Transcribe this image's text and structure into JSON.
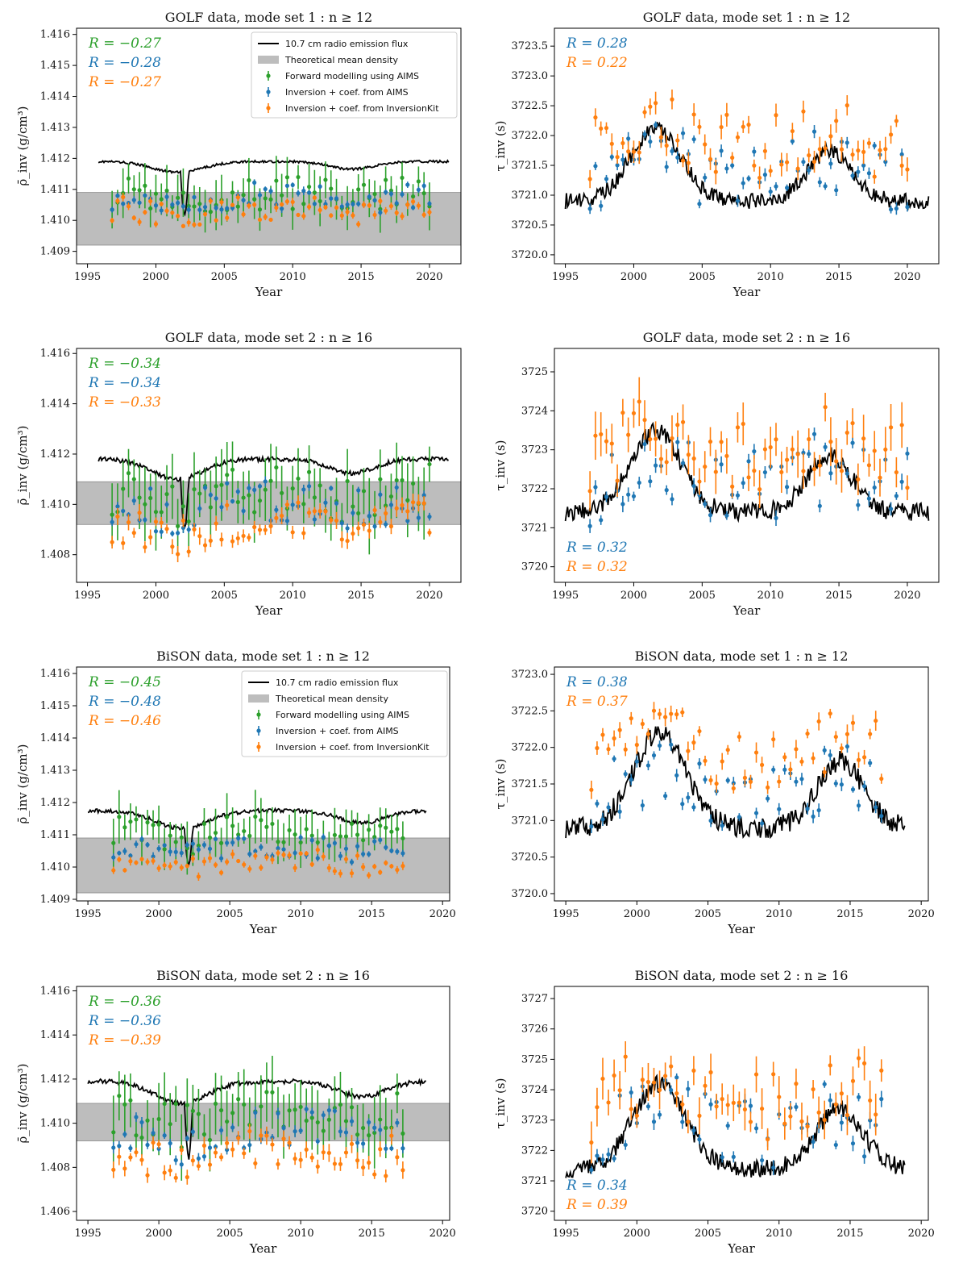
{
  "colors": {
    "forward": "#2ca02c",
    "inv_aims": "#1f77b4",
    "inv_kit": "#ff7f0e",
    "flux": "#000000",
    "band": "#bdbdbd"
  },
  "legend": {
    "flux": "10.7 cm radio emission flux",
    "band": "Theoretical mean density",
    "forward": "Forward modelling using AIMS",
    "inv_aims": "Inversion + coef. from AIMS",
    "inv_kit": "Inversion + coef. from InversionKit"
  },
  "chart_data": [
    {
      "id": "p1",
      "type": "scatter",
      "title": "GOLF data, mode set 1 : n ≥ 12",
      "xlabel": "Year",
      "ylabel": "ρ̄_inv (g/cm³)",
      "xlim": [
        1994.2,
        2022.3
      ],
      "ylim": [
        1408.6,
        1416.2
      ],
      "xticks": [
        1995,
        2000,
        2005,
        2010,
        2015,
        2020
      ],
      "xtick_labels": [
        "1995",
        "2000",
        "2005",
        "2010",
        "2015",
        "2020"
      ],
      "yticks": [
        1409,
        1410,
        1411,
        1412,
        1413,
        1414,
        1415,
        1416
      ],
      "ytick_labels": [
        "1.409",
        "1.410",
        "1.411",
        "1.412",
        "1.413",
        "1.414",
        "1.415",
        "1.416"
      ],
      "band": [
        1409.2,
        1410.9
      ],
      "has_legend": true,
      "correlations": [
        {
          "series": "forward",
          "text": "R = −0.27"
        },
        {
          "series": "inv_aims",
          "text": "R = −0.28"
        },
        {
          "series": "inv_kit",
          "text": "R = −0.27"
        }
      ],
      "corr_pos": "top-left",
      "flux": {
        "start": 1995.8,
        "end": 2021.4,
        "quiet": 1411.9,
        "amp": 0.35,
        "base": 1411.9,
        "dips": [
          [
            2001.8,
            2002.4,
            -1.4
          ]
        ]
      },
      "series": [
        {
          "name": "forward",
          "start": 1996.8,
          "end": 2020.1,
          "step": 0.4,
          "base": 1410.9,
          "amp": 0.4,
          "noise": 0.55,
          "err": 0.6
        },
        {
          "name": "inv_aims",
          "start": 1996.8,
          "end": 2020.1,
          "step": 0.4,
          "base": 1410.8,
          "amp": 0.35,
          "noise": 0.45,
          "err": 0.1
        },
        {
          "name": "inv_kit",
          "start": 1996.8,
          "end": 2020.1,
          "step": 0.4,
          "base": 1410.4,
          "amp": 0.3,
          "noise": 0.4,
          "err": 0.1
        }
      ]
    },
    {
      "id": "p2",
      "type": "scatter",
      "title": "GOLF data, mode set 1 : n ≥ 12",
      "xlabel": "Year",
      "ylabel": "τ_inv (s)",
      "xlim": [
        1994.2,
        2022.3
      ],
      "ylim": [
        3719.85,
        3723.8
      ],
      "xticks": [
        1995,
        2000,
        2005,
        2010,
        2015,
        2020
      ],
      "xtick_labels": [
        "1995",
        "2000",
        "2005",
        "2010",
        "2015",
        "2020"
      ],
      "yticks": [
        3720.0,
        3720.5,
        3721.0,
        3721.5,
        3722.0,
        3722.5,
        3723.0,
        3723.5
      ],
      "ytick_labels": [
        "3720.0",
        "3720.5",
        "3721.0",
        "3721.5",
        "3722.0",
        "3722.5",
        "3723.0",
        "3723.5"
      ],
      "band": null,
      "has_legend": false,
      "correlations": [
        {
          "series": "inv_aims",
          "text": "R = 0.28"
        },
        {
          "series": "inv_kit",
          "text": "R = 0.22"
        }
      ],
      "corr_pos": "top-left",
      "flux": {
        "start": 1995.0,
        "end": 2021.6,
        "quiet": 3720.9,
        "amp": 1.2,
        "base": 3720.9,
        "dips": []
      },
      "series": [
        {
          "name": "inv_aims",
          "start": 1996.8,
          "end": 2020.1,
          "step": 0.4,
          "base": 3721.3,
          "amp": 0.4,
          "noise": 0.55,
          "err": 0.08
        },
        {
          "name": "inv_kit",
          "start": 1996.8,
          "end": 2020.1,
          "step": 0.4,
          "base": 3721.8,
          "amp": 0.35,
          "noise": 0.55,
          "err": 0.15
        }
      ]
    },
    {
      "id": "p3",
      "type": "scatter",
      "title": "GOLF data, mode set 2 : n ≥ 16",
      "xlabel": "Year",
      "ylabel": "ρ̄_inv (g/cm³)",
      "xlim": [
        1994.2,
        2022.3
      ],
      "ylim": [
        1406.9,
        1416.2
      ],
      "xticks": [
        1995,
        2000,
        2005,
        2010,
        2015,
        2020
      ],
      "xtick_labels": [
        "1995",
        "2000",
        "2005",
        "2010",
        "2015",
        "2020"
      ],
      "yticks": [
        1408,
        1410,
        1412,
        1414,
        1416
      ],
      "ytick_labels": [
        "1.408",
        "1.410",
        "1.412",
        "1.414",
        "1.416"
      ],
      "band": [
        1409.2,
        1410.9
      ],
      "has_legend": false,
      "correlations": [
        {
          "series": "forward",
          "text": "R = −0.34"
        },
        {
          "series": "inv_aims",
          "text": "R = −0.34"
        },
        {
          "series": "inv_kit",
          "text": "R = −0.33"
        }
      ],
      "corr_pos": "top-left",
      "flux": {
        "start": 1995.8,
        "end": 2021.4,
        "quiet": 1411.8,
        "amp": 0.8,
        "base": 1411.8,
        "dips": [
          [
            2001.8,
            2002.4,
            -2.0
          ]
        ]
      },
      "series": [
        {
          "name": "forward",
          "start": 1996.8,
          "end": 2020.1,
          "step": 0.4,
          "base": 1410.6,
          "amp": 0.8,
          "noise": 1.0,
          "err": 1.1
        },
        {
          "name": "inv_aims",
          "start": 1996.8,
          "end": 2020.1,
          "step": 0.4,
          "base": 1410.2,
          "amp": 0.6,
          "noise": 0.9,
          "err": 0.15
        },
        {
          "name": "inv_kit",
          "start": 1996.8,
          "end": 2020.1,
          "step": 0.4,
          "base": 1409.3,
          "amp": 0.5,
          "noise": 0.8,
          "err": 0.25
        }
      ]
    },
    {
      "id": "p4",
      "type": "scatter",
      "title": "GOLF data, mode set 2 : n ≥ 16",
      "xlabel": "Year",
      "ylabel": "τ_inv (s)",
      "xlim": [
        1994.2,
        2022.3
      ],
      "ylim": [
        3719.6,
        3725.6
      ],
      "xticks": [
        1995,
        2000,
        2005,
        2010,
        2015,
        2020
      ],
      "xtick_labels": [
        "1995",
        "2000",
        "2005",
        "2010",
        "2015",
        "2020"
      ],
      "yticks": [
        3720,
        3721,
        3722,
        3723,
        3724,
        3725
      ],
      "ytick_labels": [
        "3720",
        "3721",
        "3722",
        "3723",
        "3724",
        "3725"
      ],
      "band": null,
      "has_legend": false,
      "correlations": [
        {
          "series": "inv_aims",
          "text": "R = 0.32"
        },
        {
          "series": "inv_kit",
          "text": "R = 0.32"
        }
      ],
      "corr_pos": "bottom-left",
      "flux": {
        "start": 1995.0,
        "end": 2021.6,
        "quiet": 3721.4,
        "amp": 2.1,
        "base": 3721.4,
        "dips": []
      },
      "series": [
        {
          "name": "inv_aims",
          "start": 1996.8,
          "end": 2020.1,
          "step": 0.4,
          "base": 3722.0,
          "amp": 0.8,
          "noise": 1.0,
          "err": 0.15
        },
        {
          "name": "inv_kit",
          "start": 1996.8,
          "end": 2020.1,
          "step": 0.4,
          "base": 3722.8,
          "amp": 0.8,
          "noise": 0.9,
          "err": 0.45
        }
      ]
    },
    {
      "id": "p5",
      "type": "scatter",
      "title": "BiSON data, mode set 1 : n ≥ 12",
      "xlabel": "Year",
      "ylabel": "ρ̄_inv (g/cm³)",
      "xlim": [
        1994.2,
        2020.5
      ],
      "ylim": [
        1408.95,
        1416.2
      ],
      "xticks": [
        1995,
        2000,
        2005,
        2010,
        2015,
        2020
      ],
      "xtick_labels": [
        "1995",
        "2000",
        "2005",
        "2010",
        "2015",
        "2020"
      ],
      "yticks": [
        1409,
        1410,
        1411,
        1412,
        1413,
        1414,
        1415,
        1416
      ],
      "ytick_labels": [
        "1.409",
        "1.410",
        "1.411",
        "1.412",
        "1.413",
        "1.414",
        "1.415",
        "1.416"
      ],
      "band": [
        1409.2,
        1410.9
      ],
      "has_legend": true,
      "correlations": [
        {
          "series": "forward",
          "text": "R = −0.45"
        },
        {
          "series": "inv_aims",
          "text": "R = −0.48"
        },
        {
          "series": "inv_kit",
          "text": "R = −0.46"
        }
      ],
      "corr_pos": "top-left",
      "flux": {
        "start": 1995.0,
        "end": 2018.9,
        "quiet": 1411.75,
        "amp": 0.55,
        "base": 1411.75,
        "dips": [
          [
            2001.8,
            2002.4,
            -1.2
          ]
        ]
      },
      "series": [
        {
          "name": "forward",
          "start": 1996.8,
          "end": 2017.3,
          "step": 0.4,
          "base": 1411.2,
          "amp": 0.4,
          "noise": 0.45,
          "err": 0.6
        },
        {
          "name": "inv_aims",
          "start": 1996.8,
          "end": 2017.3,
          "step": 0.4,
          "base": 1410.65,
          "amp": 0.25,
          "noise": 0.35,
          "err": 0.1
        },
        {
          "name": "inv_kit",
          "start": 1996.8,
          "end": 2017.3,
          "step": 0.4,
          "base": 1410.25,
          "amp": 0.25,
          "noise": 0.35,
          "err": 0.1
        }
      ]
    },
    {
      "id": "p6",
      "type": "scatter",
      "title": "BiSON data, mode set 1 : n ≥ 12",
      "xlabel": "Year",
      "ylabel": "τ_inv (s)",
      "xlim": [
        1994.2,
        2020.5
      ],
      "ylim": [
        3719.9,
        3723.1
      ],
      "xticks": [
        1995,
        2000,
        2005,
        2010,
        2015,
        2020
      ],
      "xtick_labels": [
        "1995",
        "2000",
        "2005",
        "2010",
        "2015",
        "2020"
      ],
      "yticks": [
        3720.0,
        3720.5,
        3721.0,
        3721.5,
        3722.0,
        3722.5,
        3723.0
      ],
      "ytick_labels": [
        "3720.0",
        "3720.5",
        "3721.0",
        "3721.5",
        "3722.0",
        "3722.5",
        "3723.0"
      ],
      "band": null,
      "has_legend": false,
      "correlations": [
        {
          "series": "inv_aims",
          "text": "R = 0.38"
        },
        {
          "series": "inv_kit",
          "text": "R = 0.37"
        }
      ],
      "corr_pos": "top-left",
      "flux": {
        "start": 1995.0,
        "end": 2018.9,
        "quiet": 3720.9,
        "amp": 1.3,
        "base": 3720.9,
        "dips": []
      },
      "series": [
        {
          "name": "inv_aims",
          "start": 1996.8,
          "end": 2017.3,
          "step": 0.4,
          "base": 3721.35,
          "amp": 0.35,
          "noise": 0.45,
          "err": 0.07
        },
        {
          "name": "inv_kit",
          "start": 1996.8,
          "end": 2017.3,
          "step": 0.4,
          "base": 3721.85,
          "amp": 0.35,
          "noise": 0.45,
          "err": 0.1
        }
      ]
    },
    {
      "id": "p7",
      "type": "scatter",
      "title": "BiSON data, mode set 2 : n ≥ 16",
      "xlabel": "Year",
      "ylabel": "ρ̄_inv (g/cm³)",
      "xlim": [
        1994.2,
        2020.5
      ],
      "ylim": [
        1405.6,
        1416.2
      ],
      "xticks": [
        1995,
        2000,
        2005,
        2010,
        2015,
        2020
      ],
      "xtick_labels": [
        "1995",
        "2000",
        "2005",
        "2010",
        "2015",
        "2020"
      ],
      "yticks": [
        1406,
        1408,
        1410,
        1412,
        1414,
        1416
      ],
      "ytick_labels": [
        "1.406",
        "1.408",
        "1.410",
        "1.412",
        "1.414",
        "1.416"
      ],
      "band": [
        1409.2,
        1410.9
      ],
      "has_legend": false,
      "correlations": [
        {
          "series": "forward",
          "text": "R = −0.36"
        },
        {
          "series": "inv_aims",
          "text": "R = −0.36"
        },
        {
          "series": "inv_kit",
          "text": "R = −0.39"
        }
      ],
      "corr_pos": "top-left",
      "flux": {
        "start": 1995.0,
        "end": 2018.9,
        "quiet": 1411.9,
        "amp": 1.0,
        "base": 1411.9,
        "dips": [
          [
            2001.8,
            2002.4,
            -2.5
          ]
        ]
      },
      "series": [
        {
          "name": "forward",
          "start": 1996.8,
          "end": 2017.3,
          "step": 0.4,
          "base": 1410.7,
          "amp": 0.9,
          "noise": 1.1,
          "err": 1.2
        },
        {
          "name": "inv_aims",
          "start": 1996.8,
          "end": 2017.3,
          "step": 0.4,
          "base": 1409.9,
          "amp": 0.8,
          "noise": 1.0,
          "err": 0.2
        },
        {
          "name": "inv_kit",
          "start": 1996.8,
          "end": 2017.3,
          "step": 0.4,
          "base": 1408.8,
          "amp": 0.8,
          "noise": 0.9,
          "err": 0.3
        }
      ]
    },
    {
      "id": "p8",
      "type": "scatter",
      "title": "BiSON data, mode set 2 : n ≥ 16",
      "xlabel": "Year",
      "ylabel": "τ_inv (s)",
      "xlim": [
        1994.2,
        2020.5
      ],
      "ylim": [
        3719.7,
        3727.4
      ],
      "xticks": [
        1995,
        2000,
        2005,
        2010,
        2015,
        2020
      ],
      "xtick_labels": [
        "1995",
        "2000",
        "2005",
        "2010",
        "2015",
        "2020"
      ],
      "yticks": [
        3720,
        3721,
        3722,
        3723,
        3724,
        3725,
        3726,
        3727
      ],
      "ytick_labels": [
        "3720",
        "3721",
        "3722",
        "3723",
        "3724",
        "3725",
        "3726",
        "3727"
      ],
      "band": null,
      "has_legend": false,
      "correlations": [
        {
          "series": "inv_aims",
          "text": "R = 0.34"
        },
        {
          "series": "inv_kit",
          "text": "R = 0.39"
        }
      ],
      "corr_pos": "bottom-left",
      "flux": {
        "start": 1995.0,
        "end": 2018.9,
        "quiet": 3721.4,
        "amp": 2.8,
        "base": 3721.4,
        "dips": []
      },
      "series": [
        {
          "name": "inv_aims",
          "start": 1996.8,
          "end": 2017.3,
          "step": 0.4,
          "base": 3722.5,
          "amp": 1.1,
          "noise": 1.2,
          "err": 0.2
        },
        {
          "name": "inv_kit",
          "start": 1996.8,
          "end": 2017.3,
          "step": 0.4,
          "base": 3723.4,
          "amp": 1.2,
          "noise": 1.2,
          "err": 0.5
        }
      ]
    }
  ]
}
